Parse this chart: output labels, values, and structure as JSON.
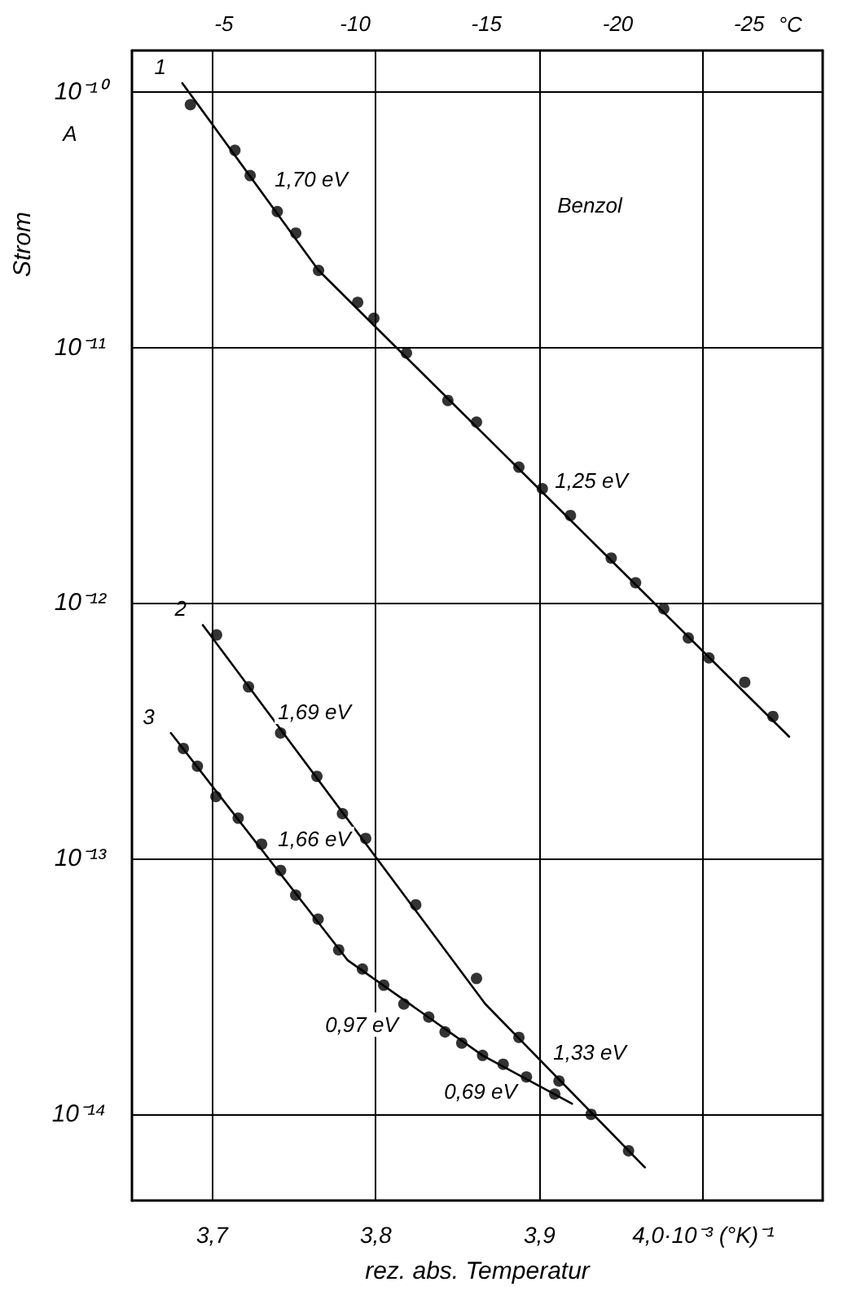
{
  "chart_data": {
    "type": "scatter",
    "xlabel": "rez. abs. Temperatur",
    "ylabel": "Strom",
    "xlim": [
      3.651,
      4.073
    ],
    "xticks": [
      {
        "value": 3.7,
        "label": "3,7"
      },
      {
        "value": 3.8,
        "label": "3,8"
      },
      {
        "value": 3.9,
        "label": "3,9"
      },
      {
        "value": 4.0,
        "label": "4,0·10⁻³ (°K)⁻¹"
      }
    ],
    "x2lim": [
      -1.5,
      -27.8
    ],
    "x2ticks": [
      -5,
      -10,
      -15,
      -20,
      -25
    ],
    "x2label": "°C",
    "ylim": [
      4.6e-15,
      1.45e-10
    ],
    "log": "y",
    "yticks": [
      {
        "value": 1e-14,
        "label": "10⁻¹⁴"
      },
      {
        "value": 1e-13,
        "label": "10⁻¹³"
      },
      {
        "value": 1e-12,
        "label": "10⁻¹²"
      },
      {
        "value": 1e-11,
        "label": "10⁻¹¹"
      },
      {
        "value": 1e-10,
        "label": "10⁻¹⁰"
      }
    ],
    "grid": true,
    "legend": false,
    "series": [
      {
        "type": "scatter",
        "marker": "circle",
        "color": "#000000",
        "x": [
          3.6867,
          3.7139,
          3.7232,
          3.7398,
          3.7511,
          3.765,
          3.7889,
          3.7988,
          3.8187,
          3.844,
          3.8615,
          3.8874,
          3.9017,
          3.9189,
          3.9438,
          3.9587,
          3.9759,
          3.9909,
          4.0035,
          4.0254,
          4.0426
        ],
        "values": [
          8.9e-11,
          5.9e-11,
          4.7e-11,
          3.4e-11,
          2.8e-11,
          2e-11,
          1.5e-11,
          1.3e-11,
          9.5e-12,
          6.2e-12,
          5.1e-12,
          3.4e-12,
          2.8e-12,
          2.2e-12,
          1.5e-12,
          1.2e-12,
          9.5e-13,
          7.3e-13,
          6.1e-13,
          4.9e-13,
          3.6e-13
        ]
      },
      {
        "type": "line",
        "name": "1",
        "marker": "none",
        "line_style": "solid",
        "color": "#000000",
        "x": [
          3.6818,
          3.765,
          4.0525
        ],
        "values": [
          1.08e-10,
          2e-11,
          3e-13
        ]
      },
      {
        "type": "scatter",
        "marker": "circle",
        "color": "#000000",
        "x": [
          3.7027,
          3.7222,
          3.7418,
          3.764,
          3.7796,
          3.7938,
          3.8244,
          3.8615,
          3.8874,
          3.9119,
          3.9315,
          3.9544
        ],
        "values": [
          7.5e-13,
          4.7e-13,
          3.1e-13,
          2.1e-13,
          1.5e-13,
          1.2e-13,
          6.6e-14,
          3.4e-14,
          2e-14,
          1.35e-14,
          1e-14,
          7.2e-15
        ]
      },
      {
        "type": "line",
        "name": "2",
        "marker": "none",
        "line_style": "solid",
        "color": "#000000",
        "x": [
          3.6943,
          3.8669,
          3.9644
        ],
        "values": [
          8.2e-13,
          2.7e-14,
          6.2e-15
        ]
      },
      {
        "type": "scatter",
        "marker": "circle",
        "color": "#000000",
        "x": [
          3.6824,
          3.691,
          3.7023,
          3.7159,
          3.7302,
          3.7418,
          3.751,
          3.7647,
          3.7773,
          3.7918,
          3.8048,
          3.8171,
          3.8323,
          3.8423,
          3.8525,
          3.8652,
          3.8778,
          3.892,
          3.9093
        ],
        "values": [
          2.7e-13,
          2.3e-13,
          1.75e-13,
          1.44e-13,
          1.14e-13,
          9e-14,
          7.2e-14,
          5.8e-14,
          4.4e-14,
          3.7e-14,
          3.2e-14,
          2.7e-14,
          2.4e-14,
          2.1e-14,
          1.9e-14,
          1.7e-14,
          1.57e-14,
          1.4e-14,
          1.2e-14
        ]
      },
      {
        "type": "line",
        "name": "3",
        "marker": "none",
        "line_style": "solid",
        "color": "#000000",
        "x": [
          3.6748,
          3.7829,
          3.8652,
          3.9199
        ],
        "values": [
          3.1e-13,
          4e-14,
          1.7e-14,
          1.1e-14
        ]
      }
    ],
    "annotations": [
      "1,70 eV",
      "1,25 eV",
      "1,69 eV",
      "1,66 eV",
      "0,97 eV",
      "0,69 eV",
      "1,33 eV",
      "Benzol",
      "A"
    ]
  }
}
